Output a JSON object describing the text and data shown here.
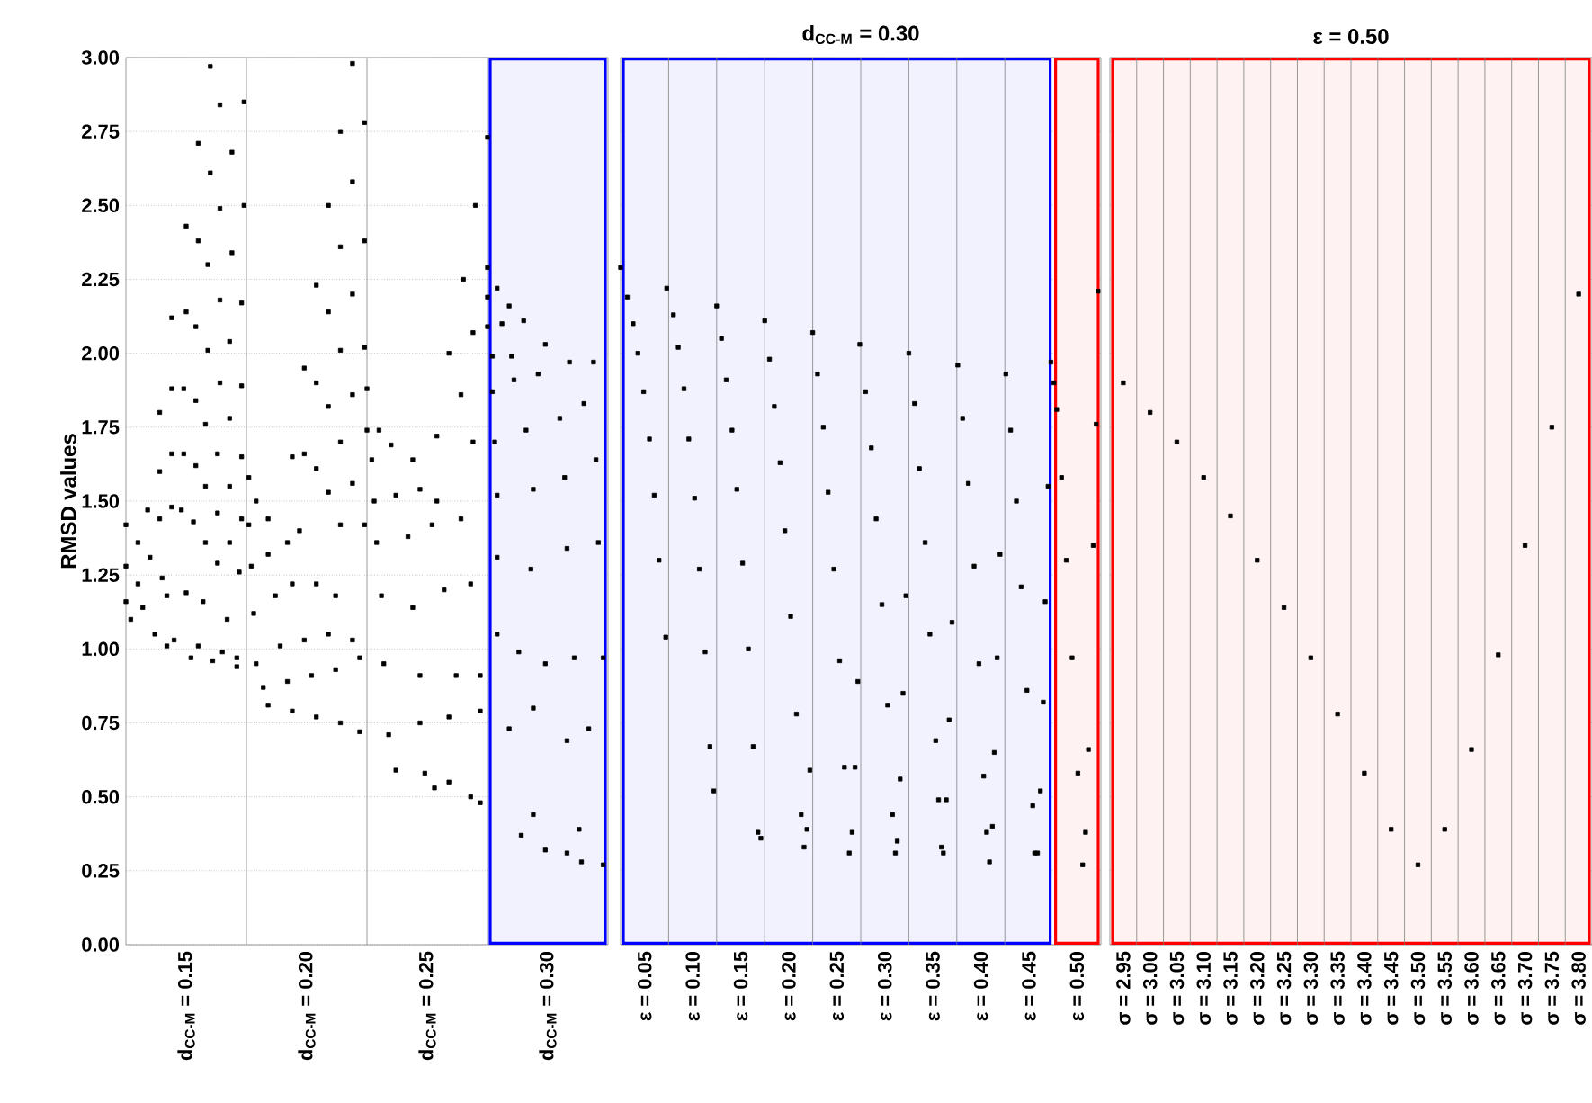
{
  "chart_data": [
    {
      "type": "scatter",
      "ylabel": "RMSD values",
      "xlim": [
        0.125,
        0.325
      ],
      "ylim": [
        0,
        3
      ],
      "grid": "y",
      "marker": "square",
      "xticks": [
        {
          "value": 0.15,
          "label": "d$_{CC-M}$ = 0.15"
        },
        {
          "value": 0.2,
          "label": "d$_{CC-M}$ = 0.20"
        },
        {
          "value": 0.25,
          "label": "d$_{CC-M}$ = 0.25"
        },
        {
          "value": 0.3,
          "label": "d$_{CC-M}$ = 0.30"
        }
      ],
      "yticks": [
        {
          "value": 0,
          "label": "0.00"
        },
        {
          "value": 0.25,
          "label": "0.25"
        },
        {
          "value": 0.5,
          "label": "0.50"
        },
        {
          "value": 0.75,
          "label": "0.75"
        },
        {
          "value": 1,
          "label": "1.00"
        },
        {
          "value": 1.25,
          "label": "1.25"
        },
        {
          "value": 1.5,
          "label": "1.50"
        },
        {
          "value": 1.75,
          "label": "1.75"
        },
        {
          "value": 2,
          "label": "2.00"
        },
        {
          "value": 2.25,
          "label": "2.25"
        },
        {
          "value": 2.5,
          "label": "2.50"
        },
        {
          "value": 2.75,
          "label": "2.75"
        },
        {
          "value": 3,
          "label": "3.00"
        }
      ],
      "ref_lines": [
        {
          "axis": "x",
          "value": 0.175,
          "color": "#808080"
        },
        {
          "axis": "x",
          "value": 0.225,
          "color": "#808080"
        },
        {
          "axis": "x",
          "value": 0.275,
          "color": "#808080"
        }
      ],
      "bands": [
        {
          "axis": "x",
          "from": 0.275,
          "to": 0.325,
          "color": "#0000ff"
        }
      ],
      "series": [
        {
          "color": "#000000",
          "x": [
            0.16,
            0.164,
            0.174,
            0.155,
            0.169,
            0.16,
            0.164,
            0.174,
            0.15,
            0.155,
            0.169,
            0.159,
            0.164,
            0.173,
            0.144,
            0.15,
            0.154,
            0.159,
            0.168,
            0.139,
            0.144,
            0.149,
            0.154,
            0.164,
            0.173,
            0.158,
            0.168,
            0.139,
            0.144,
            0.149,
            0.154,
            0.163,
            0.173,
            0.158,
            0.168,
            0.134,
            0.139,
            0.144,
            0.148,
            0.153,
            0.163,
            0.173,
            0.158,
            0.168,
            0.163,
            0.172,
            0.125,
            0.125,
            0.13,
            0.135,
            0.125,
            0.13,
            0.14,
            0.127,
            0.132,
            0.142,
            0.15,
            0.157,
            0.167,
            0.137,
            0.145,
            0.155,
            0.165,
            0.171,
            0.142,
            0.152,
            0.161,
            0.171,
            0.219,
            0.224,
            0.214,
            0.219,
            0.209,
            0.224,
            0.214,
            0.204,
            0.219,
            0.209,
            0.214,
            0.224,
            0.199,
            0.204,
            0.219,
            0.209,
            0.214,
            0.194,
            0.199,
            0.204,
            0.219,
            0.209,
            0.214,
            0.224,
            0.176,
            0.176,
            0.179,
            0.184,
            0.177,
            0.184,
            0.192,
            0.197,
            0.178,
            0.187,
            0.194,
            0.204,
            0.212,
            0.179,
            0.189,
            0.199,
            0.209,
            0.219,
            0.182,
            0.192,
            0.202,
            0.212,
            0.222,
            0.184,
            0.194,
            0.204,
            0.214,
            0.222,
            0.27,
            0.265,
            0.269,
            0.259,
            0.264,
            0.254,
            0.269,
            0.225,
            0.225,
            0.23,
            0.227,
            0.235,
            0.244,
            0.228,
            0.237,
            0.247,
            0.254,
            0.229,
            0.242,
            0.252,
            0.264,
            0.231,
            0.244,
            0.257,
            0.268,
            0.232,
            0.247,
            0.262,
            0.272,
            0.234,
            0.247,
            0.259,
            0.272,
            0.237,
            0.249,
            0.259,
            0.268,
            0.272,
            0.253,
            0.275,
            0.275,
            0.279,
            0.284,
            0.275,
            0.281,
            0.29,
            0.277,
            0.285,
            0.299,
            0.277,
            0.286,
            0.296,
            0.309,
            0.319,
            0.278,
            0.291,
            0.305,
            0.315,
            0.279,
            0.294,
            0.307,
            0.32,
            0.279,
            0.293,
            0.308,
            0.321,
            0.279,
            0.288,
            0.299,
            0.311,
            0.323,
            0.284,
            0.294,
            0.308,
            0.317,
            0.289,
            0.294,
            0.299,
            0.308,
            0.314,
            0.323,
            0.313,
            0.275
          ],
          "values": [
            2.97,
            2.84,
            2.85,
            2.71,
            2.68,
            2.61,
            2.49,
            2.5,
            2.43,
            2.38,
            2.34,
            2.3,
            2.18,
            2.17,
            2.12,
            2.14,
            2.09,
            2.01,
            2.04,
            1.8,
            1.88,
            1.88,
            1.84,
            1.9,
            1.89,
            1.76,
            1.78,
            1.6,
            1.66,
            1.66,
            1.62,
            1.66,
            1.65,
            1.55,
            1.55,
            1.47,
            1.44,
            1.48,
            1.47,
            1.43,
            1.46,
            1.44,
            1.36,
            1.36,
            1.29,
            1.26,
            1.42,
            1.28,
            1.36,
            1.31,
            1.16,
            1.22,
            1.24,
            1.1,
            1.14,
            1.18,
            1.19,
            1.16,
            1.1,
            1.05,
            1.03,
            1.01,
            0.99,
            0.97,
            1.01,
            0.97,
            0.96,
            0.94,
            2.98,
            2.78,
            2.75,
            2.58,
            2.5,
            2.38,
            2.36,
            2.23,
            2.2,
            2.14,
            2.01,
            2.02,
            1.95,
            1.9,
            1.86,
            1.82,
            1.7,
            1.65,
            1.66,
            1.61,
            1.56,
            1.53,
            1.42,
            1.42,
            1.58,
            1.42,
            1.5,
            1.44,
            1.28,
            1.32,
            1.36,
            1.4,
            1.12,
            1.18,
            1.22,
            1.22,
            1.18,
            0.95,
            1.01,
            1.03,
            1.05,
            1.03,
            0.87,
            0.89,
            0.91,
            0.93,
            0.97,
            0.81,
            0.79,
            0.77,
            0.75,
            0.72,
            2.5,
            2.25,
            2.07,
            2.0,
            1.86,
            1.72,
            1.7,
            1.88,
            1.74,
            1.74,
            1.64,
            1.69,
            1.64,
            1.5,
            1.52,
            1.54,
            1.5,
            1.36,
            1.38,
            1.42,
            1.44,
            1.18,
            1.14,
            1.2,
            1.22,
            0.95,
            0.91,
            0.91,
            0.91,
            0.71,
            0.75,
            0.77,
            0.79,
            0.59,
            0.58,
            0.55,
            0.5,
            0.48,
            0.53,
            2.29,
            2.19,
            2.22,
            2.16,
            2.09,
            2.1,
            2.11,
            1.99,
            1.99,
            2.03,
            1.87,
            1.91,
            1.93,
            1.97,
            1.97,
            1.7,
            1.74,
            1.78,
            1.83,
            1.52,
            1.54,
            1.58,
            1.64,
            1.31,
            1.27,
            1.34,
            1.36,
            1.05,
            0.99,
            0.95,
            0.97,
            0.97,
            0.73,
            0.8,
            0.69,
            0.73,
            0.37,
            0.44,
            0.32,
            0.31,
            0.28,
            0.27,
            0.39,
            2.73
          ]
        }
      ]
    },
    {
      "type": "scatter",
      "title": "d$_{CC-M}$ = 0.30",
      "xlim": [
        0.025,
        0.525
      ],
      "ylim": [
        0,
        3
      ],
      "grid": "y",
      "marker": "square",
      "tick_labels": "x",
      "xticks": [
        {
          "value": 0.05,
          "label": "ε = 0.05"
        },
        {
          "value": 0.1,
          "label": "ε = 0.10"
        },
        {
          "value": 0.15,
          "label": "ε = 0.15"
        },
        {
          "value": 0.2,
          "label": "ε = 0.20"
        },
        {
          "value": 0.25,
          "label": "ε = 0.25"
        },
        {
          "value": 0.3,
          "label": "ε = 0.30"
        },
        {
          "value": 0.35,
          "label": "ε = 0.35"
        },
        {
          "value": 0.4,
          "label": "ε = 0.40"
        },
        {
          "value": 0.45,
          "label": "ε = 0.45"
        },
        {
          "value": 0.5,
          "label": "ε = 0.50"
        }
      ],
      "yticks": [
        0,
        0.25,
        0.5,
        0.75,
        1,
        1.25,
        1.5,
        1.75,
        2,
        2.25,
        2.5,
        2.75,
        3
      ],
      "ref_lines": [
        {
          "axis": "x",
          "value": 0.075,
          "color": "#808080"
        },
        {
          "axis": "x",
          "value": 0.125,
          "color": "#808080"
        },
        {
          "axis": "x",
          "value": 0.175,
          "color": "#808080"
        },
        {
          "axis": "x",
          "value": 0.225,
          "color": "#808080"
        },
        {
          "axis": "x",
          "value": 0.275,
          "color": "#808080"
        },
        {
          "axis": "x",
          "value": 0.325,
          "color": "#808080"
        },
        {
          "axis": "x",
          "value": 0.375,
          "color": "#808080"
        },
        {
          "axis": "x",
          "value": 0.425,
          "color": "#808080"
        }
      ],
      "bands": [
        {
          "axis": "x",
          "from": 0.025,
          "to": 0.475,
          "color": "#0000ff"
        },
        {
          "axis": "x",
          "from": 0.475,
          "to": 0.525,
          "color": "#ff0000"
        }
      ],
      "series": [
        {
          "color": "#000000",
          "x": [
            0.025,
            0.032,
            0.038,
            0.043,
            0.049,
            0.055,
            0.06,
            0.065,
            0.072,
            0.073,
            0.08,
            0.085,
            0.091,
            0.096,
            0.102,
            0.107,
            0.113,
            0.118,
            0.122,
            0.125,
            0.13,
            0.135,
            0.141,
            0.146,
            0.152,
            0.158,
            0.163,
            0.168,
            0.171,
            0.175,
            0.18,
            0.185,
            0.191,
            0.196,
            0.202,
            0.208,
            0.213,
            0.216,
            0.219,
            0.222,
            0.225,
            0.23,
            0.236,
            0.241,
            0.247,
            0.253,
            0.258,
            0.263,
            0.266,
            0.269,
            0.272,
            0.274,
            0.28,
            0.286,
            0.291,
            0.297,
            0.303,
            0.308,
            0.311,
            0.313,
            0.316,
            0.319,
            0.322,
            0.325,
            0.331,
            0.336,
            0.342,
            0.347,
            0.353,
            0.356,
            0.359,
            0.361,
            0.364,
            0.367,
            0.37,
            0.376,
            0.381,
            0.387,
            0.393,
            0.398,
            0.403,
            0.406,
            0.409,
            0.412,
            0.414,
            0.417,
            0.42,
            0.426,
            0.431,
            0.437,
            0.442,
            0.448,
            0.454,
            0.456,
            0.459,
            0.462,
            0.465,
            0.467,
            0.47,
            0.473,
            0.476,
            0.479,
            0.484,
            0.489,
            0.495,
            0.501,
            0.506,
            0.509,
            0.512,
            0.517,
            0.52,
            0.522
          ],
          "values": [
            2.29,
            2.19,
            2.1,
            2.0,
            1.87,
            1.71,
            1.52,
            1.3,
            1.04,
            2.22,
            2.13,
            2.02,
            1.88,
            1.71,
            1.51,
            1.27,
            0.99,
            0.67,
            0.52,
            2.16,
            2.05,
            1.91,
            1.74,
            1.54,
            1.29,
            1.0,
            0.67,
            0.38,
            0.36,
            2.11,
            1.98,
            1.82,
            1.63,
            1.4,
            1.11,
            0.78,
            0.44,
            0.33,
            0.39,
            0.59,
            2.07,
            1.93,
            1.75,
            1.53,
            1.27,
            0.96,
            0.6,
            0.31,
            0.38,
            0.6,
            0.89,
            2.03,
            1.87,
            1.68,
            1.44,
            1.15,
            0.81,
            0.44,
            0.31,
            0.35,
            0.56,
            0.85,
            1.18,
            2.0,
            1.83,
            1.61,
            1.36,
            1.05,
            0.69,
            0.49,
            0.33,
            0.31,
            0.49,
            0.76,
            1.09,
            1.96,
            1.78,
            1.56,
            1.28,
            0.95,
            0.57,
            0.38,
            0.28,
            0.4,
            0.65,
            0.97,
            1.32,
            1.93,
            1.74,
            1.5,
            1.21,
            0.86,
            0.47,
            0.31,
            0.31,
            0.52,
            0.82,
            1.16,
            1.55,
            1.97,
            1.9,
            1.81,
            1.58,
            1.3,
            0.97,
            0.58,
            0.27,
            0.38,
            0.66,
            1.35,
            1.76,
            2.21
          ]
        }
      ]
    },
    {
      "type": "scatter",
      "title": "ε = 0.50",
      "xlim": [
        2.925,
        3.825
      ],
      "ylim": [
        0,
        3
      ],
      "grid": "y",
      "marker": "square",
      "tick_labels": "x",
      "xticks": [
        {
          "value": 2.95,
          "label": "σ = 2.95"
        },
        {
          "value": 3.0,
          "label": "σ = 3.00"
        },
        {
          "value": 3.05,
          "label": "σ = 3.05"
        },
        {
          "value": 3.1,
          "label": "σ = 3.10"
        },
        {
          "value": 3.15,
          "label": "σ = 3.15"
        },
        {
          "value": 3.2,
          "label": "σ = 3.20"
        },
        {
          "value": 3.25,
          "label": "σ = 3.25"
        },
        {
          "value": 3.3,
          "label": "σ = 3.30"
        },
        {
          "value": 3.35,
          "label": "σ = 3.35"
        },
        {
          "value": 3.4,
          "label": "σ = 3.40"
        },
        {
          "value": 3.45,
          "label": "σ = 3.45"
        },
        {
          "value": 3.5,
          "label": "σ = 3.50"
        },
        {
          "value": 3.55,
          "label": "σ = 3.55"
        },
        {
          "value": 3.6,
          "label": "σ = 3.60"
        },
        {
          "value": 3.65,
          "label": "σ = 3.65"
        },
        {
          "value": 3.7,
          "label": "σ = 3.70"
        },
        {
          "value": 3.75,
          "label": "σ = 3.75"
        },
        {
          "value": 3.8,
          "label": "σ = 3.80"
        }
      ],
      "yticks": [
        0,
        0.25,
        0.5,
        0.75,
        1,
        1.25,
        1.5,
        1.75,
        2,
        2.25,
        2.5,
        2.75,
        3
      ],
      "ref_lines": [
        {
          "axis": "x",
          "value": 2.975,
          "color": "#808080"
        },
        {
          "axis": "x",
          "value": 3.025,
          "color": "#808080"
        },
        {
          "axis": "x",
          "value": 3.075,
          "color": "#808080"
        },
        {
          "axis": "x",
          "value": 3.125,
          "color": "#808080"
        },
        {
          "axis": "x",
          "value": 3.175,
          "color": "#808080"
        },
        {
          "axis": "x",
          "value": 3.225,
          "color": "#808080"
        },
        {
          "axis": "x",
          "value": 3.275,
          "color": "#808080"
        },
        {
          "axis": "x",
          "value": 3.325,
          "color": "#808080"
        },
        {
          "axis": "x",
          "value": 3.375,
          "color": "#808080"
        },
        {
          "axis": "x",
          "value": 3.425,
          "color": "#808080"
        },
        {
          "axis": "x",
          "value": 3.475,
          "color": "#808080"
        },
        {
          "axis": "x",
          "value": 3.525,
          "color": "#808080"
        },
        {
          "axis": "x",
          "value": 3.575,
          "color": "#808080"
        },
        {
          "axis": "x",
          "value": 3.625,
          "color": "#808080"
        },
        {
          "axis": "x",
          "value": 3.675,
          "color": "#808080"
        },
        {
          "axis": "x",
          "value": 3.725,
          "color": "#808080"
        },
        {
          "axis": "x",
          "value": 3.775,
          "color": "#808080"
        }
      ],
      "bands": [
        {
          "axis": "x",
          "from": 2.925,
          "to": 3.825,
          "color": "#ff0000"
        }
      ],
      "series": [
        {
          "color": "#000000",
          "x": [
            2.95,
            3.0,
            3.05,
            3.1,
            3.15,
            3.2,
            3.25,
            3.3,
            3.35,
            3.4,
            3.45,
            3.5,
            3.55,
            3.6,
            3.65,
            3.7,
            3.75,
            3.8
          ],
          "values": [
            1.9,
            1.8,
            1.7,
            1.58,
            1.45,
            1.3,
            1.14,
            0.97,
            0.78,
            0.58,
            0.39,
            0.27,
            0.39,
            0.66,
            0.98,
            1.35,
            1.75,
            2.2
          ]
        }
      ]
    }
  ]
}
